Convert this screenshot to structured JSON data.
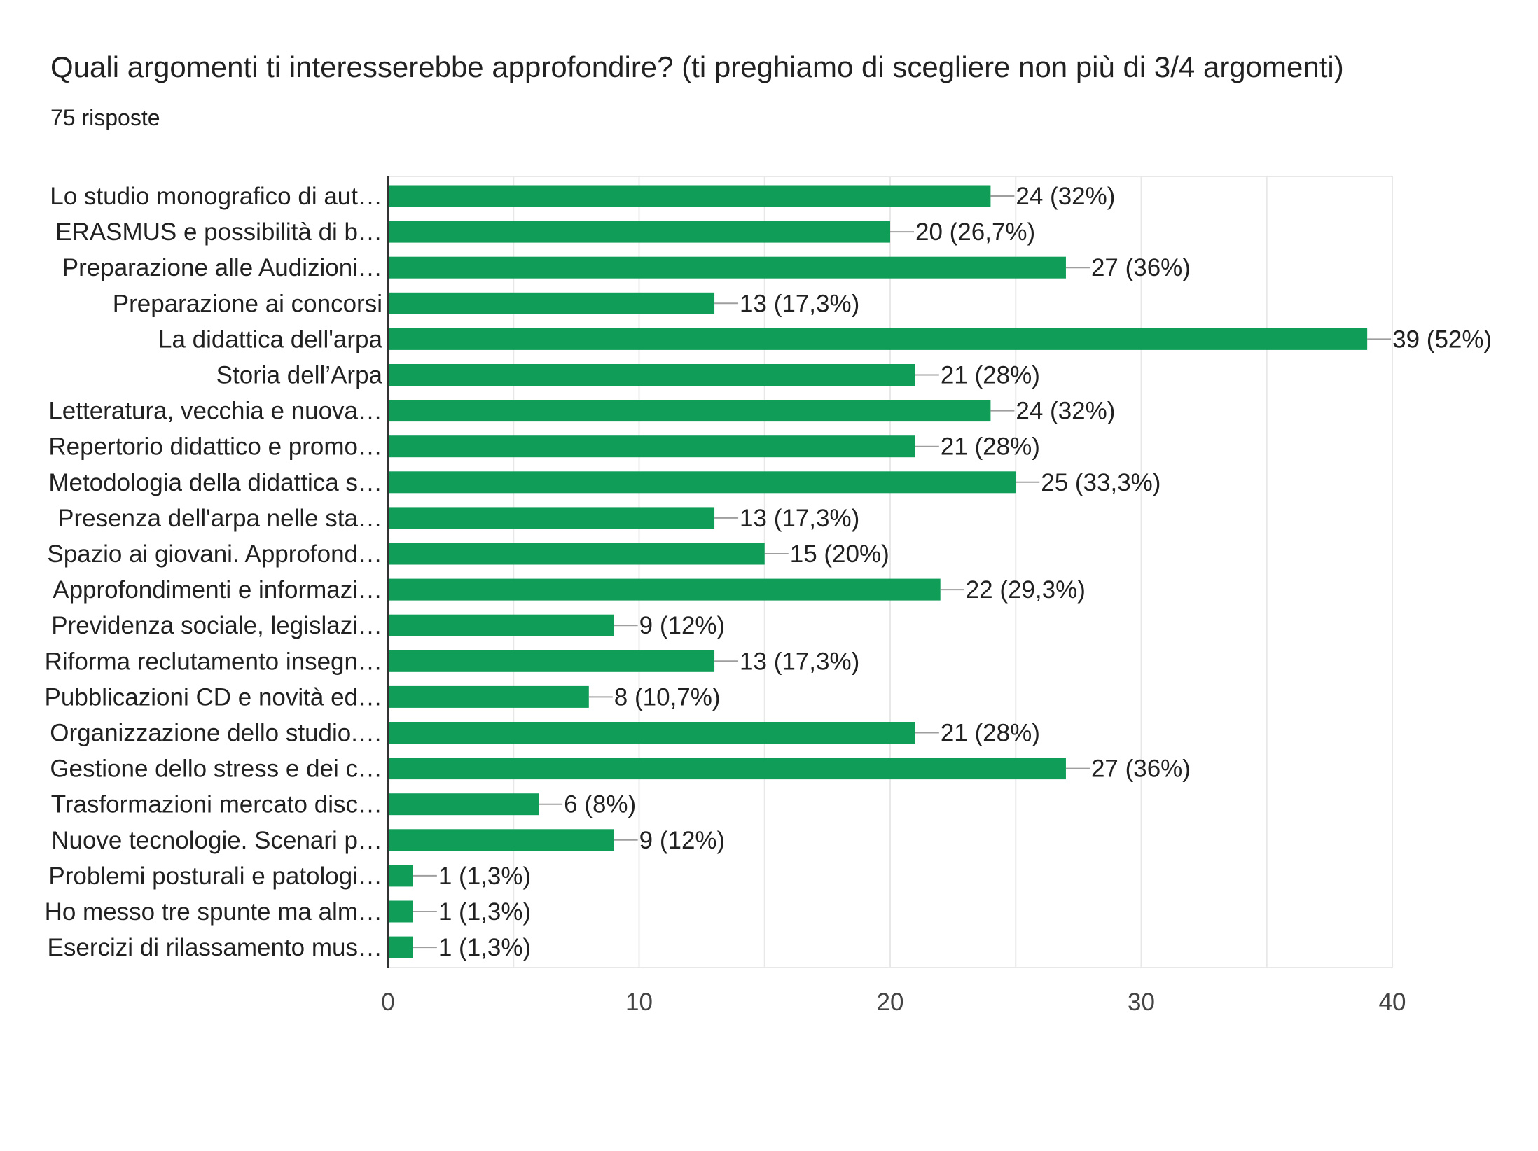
{
  "header": {
    "title": "Quali argomenti ti interesserebbe approfondire? (ti preghiamo di scegliere non più di 3/4 argomenti)",
    "subtitle": "75 risposte"
  },
  "colors": {
    "bar": "#0f9d58",
    "text": "#212121",
    "axis_text": "#444444",
    "grid": "#e8e8e8",
    "baseline": "#333333",
    "connector": "#9e9e9e"
  },
  "chart_data": {
    "type": "bar",
    "orientation": "horizontal",
    "categories": [
      "Lo studio monografico di aut…",
      "ERASMUS e possibilità di b…",
      "Preparazione alle Audizioni…",
      "Preparazione ai concorsi",
      "La didattica dell'arpa",
      "Storia dell’Arpa",
      "Letteratura, vecchia e nuova…",
      "Repertorio didattico e promo…",
      "Metodologia della didattica s…",
      "Presenza dell'arpa nelle sta…",
      "Spazio ai giovani. Approfond…",
      "Approfondimenti e informazi…",
      "Previdenza sociale, legislazi…",
      "Riforma reclutamento insegn…",
      "Pubblicazioni CD e novità ed…",
      "Organizzazione dello studio.…",
      "Gestione dello stress e dei c…",
      "Trasformazioni mercato disc…",
      "Nuove tecnologie. Scenari p…",
      "Problemi posturali e patologi…",
      "Ho messo tre spunte ma alm…",
      "Esercizi di rilassamento mus…"
    ],
    "values": [
      24,
      20,
      27,
      13,
      39,
      21,
      24,
      21,
      25,
      13,
      15,
      22,
      9,
      13,
      8,
      21,
      27,
      6,
      9,
      1,
      1,
      1
    ],
    "data_labels": [
      "24 (32%)",
      "20 (26,7%)",
      "27 (36%)",
      "13 (17,3%)",
      "39 (52%)",
      "21 (28%)",
      "24 (32%)",
      "21 (28%)",
      "25 (33,3%)",
      "13 (17,3%)",
      "15 (20%)",
      "22 (29,3%)",
      "9 (12%)",
      "13 (17,3%)",
      "8 (10,7%)",
      "21 (28%)",
      "27 (36%)",
      "6 (8%)",
      "9 (12%)",
      "1 (1,3%)",
      "1 (1,3%)",
      "1 (1,3%)"
    ],
    "xlim": [
      0,
      40
    ],
    "x_ticks": [
      "0",
      "10",
      "20",
      "30",
      "40"
    ],
    "grid": true,
    "xlabel": "",
    "ylabel": ""
  }
}
